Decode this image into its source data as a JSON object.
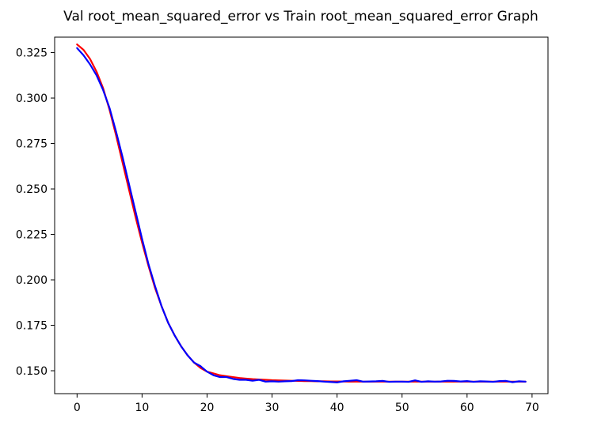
{
  "chart_data": {
    "type": "line",
    "title": "Val root_mean_squared_error vs Train root_mean_squared_error Graph",
    "xlabel": "",
    "ylabel": "",
    "xlim": [
      -3.45,
      72.45
    ],
    "ylim": [
      0.1374,
      0.3335
    ],
    "xticks": [
      0,
      10,
      20,
      30,
      40,
      50,
      60,
      70
    ],
    "yticks": [
      0.15,
      0.175,
      0.2,
      0.225,
      0.25,
      0.275,
      0.3,
      0.325
    ],
    "ytick_labels": [
      "0.150",
      "0.175",
      "0.200",
      "0.225",
      "0.250",
      "0.275",
      "0.300",
      "0.325"
    ],
    "grid": false,
    "legend": "none",
    "series": [
      {
        "color": "#ff0000",
        "x": [
          0,
          1,
          2,
          3,
          4,
          5,
          6,
          7,
          8,
          9,
          10,
          11,
          12,
          13,
          14,
          15,
          16,
          17,
          18,
          19,
          20,
          21,
          22,
          23,
          24,
          25,
          26,
          27,
          28,
          29,
          30,
          31,
          32,
          33,
          34,
          35,
          36,
          37,
          38,
          39,
          40,
          41,
          42,
          43,
          44,
          45,
          46,
          47,
          48,
          49,
          50,
          51,
          52,
          53,
          54,
          55,
          56,
          57,
          58,
          59,
          60,
          61,
          62,
          63,
          64,
          65,
          66,
          67,
          68,
          69
        ],
        "y": [
          0.3295,
          0.3265,
          0.3215,
          0.3145,
          0.3055,
          0.2935,
          0.2795,
          0.2645,
          0.2495,
          0.2345,
          0.2205,
          0.2075,
          0.1955,
          0.1855,
          0.1765,
          0.1695,
          0.1635,
          0.1585,
          0.1545,
          0.1515,
          0.1495,
          0.1485,
          0.1475,
          0.147,
          0.1465,
          0.146,
          0.1457,
          0.1454,
          0.1452,
          0.145,
          0.1448,
          0.1447,
          0.1446,
          0.1445,
          0.1444,
          0.1443,
          0.1443,
          0.1442,
          0.1442,
          0.1441,
          0.1441,
          0.1441,
          0.144,
          0.144,
          0.144,
          0.144,
          0.144,
          0.144,
          0.144,
          0.144,
          0.144,
          0.144,
          0.144,
          0.144,
          0.144,
          0.144,
          0.144,
          0.144,
          0.144,
          0.144,
          0.144,
          0.144,
          0.144,
          0.144,
          0.144,
          0.144,
          0.144,
          0.144,
          0.144,
          0.144
        ]
      },
      {
        "color": "#0000ff",
        "x": [
          0,
          1,
          2,
          3,
          4,
          5,
          6,
          7,
          8,
          9,
          10,
          11,
          12,
          13,
          14,
          15,
          16,
          17,
          18,
          19,
          20,
          21,
          22,
          23,
          24,
          25,
          26,
          27,
          28,
          29,
          30,
          31,
          32,
          33,
          34,
          35,
          36,
          37,
          38,
          39,
          40,
          41,
          42,
          43,
          44,
          45,
          46,
          47,
          48,
          49,
          50,
          51,
          52,
          53,
          54,
          55,
          56,
          57,
          58,
          59,
          60,
          61,
          62,
          63,
          64,
          65,
          66,
          67,
          68,
          69
        ],
        "y": [
          0.3275,
          0.3235,
          0.3185,
          0.3125,
          0.3045,
          0.2945,
          0.2815,
          0.2675,
          0.2525,
          0.2375,
          0.2225,
          0.2085,
          0.1965,
          0.1855,
          0.1765,
          0.1695,
          0.1635,
          0.1585,
          0.1545,
          0.1525,
          0.1495,
          0.1475,
          0.1465,
          0.1465,
          0.1455,
          0.145,
          0.145,
          0.1445,
          0.145,
          0.144,
          0.1442,
          0.144,
          0.1442,
          0.1443,
          0.1448,
          0.1447,
          0.1445,
          0.1443,
          0.144,
          0.1438,
          0.1436,
          0.1442,
          0.1445,
          0.1448,
          0.144,
          0.1441,
          0.1442,
          0.1444,
          0.1439,
          0.144,
          0.144,
          0.1439,
          0.1447,
          0.1439,
          0.1442,
          0.144,
          0.1441,
          0.1445,
          0.1444,
          0.1441,
          0.1443,
          0.1439,
          0.1442,
          0.1441,
          0.1439,
          0.1443,
          0.1444,
          0.1437,
          0.1442,
          0.144
        ]
      }
    ]
  }
}
